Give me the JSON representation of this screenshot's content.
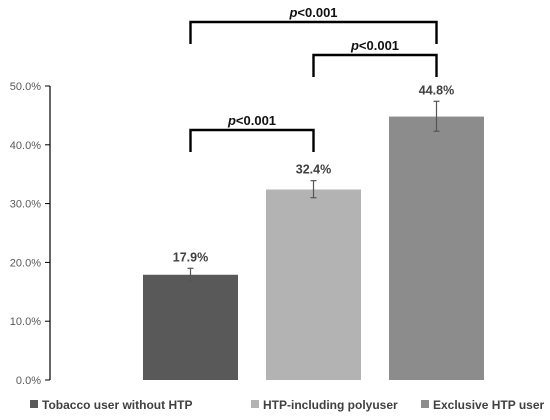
{
  "chart_data": {
    "type": "bar",
    "categories": [
      "Tobacco user without HTP",
      "HTP-including polyuser",
      "Exclusive HTP user"
    ],
    "values": [
      17.9,
      32.4,
      44.8
    ],
    "error_low": [
      16.8,
      31.0,
      42.3
    ],
    "error_high": [
      19.0,
      33.9,
      47.4
    ],
    "data_labels": [
      "17.9%",
      "32.4%",
      "44.8%"
    ],
    "bar_colors": [
      "#595959",
      "#b3b3b3",
      "#8c8c8c"
    ],
    "ylim": [
      0,
      50
    ],
    "yticks": [
      0,
      10,
      20,
      30,
      40,
      50
    ],
    "ytick_labels": [
      "0.0%",
      "10.0%",
      "20.0%",
      "30.0%",
      "40.0%",
      "50.0%"
    ],
    "title": "",
    "xlabel": "",
    "ylabel": "",
    "grid": false,
    "legend_position": "bottom",
    "annotations": [
      {
        "from": 0,
        "to": 1,
        "level": 1,
        "p_prefix": "p",
        "p_suffix": "<0.001"
      },
      {
        "from": 1,
        "to": 2,
        "level": 2,
        "p_prefix": "p",
        "p_suffix": "<0.001"
      },
      {
        "from": 0,
        "to": 2,
        "level": 3,
        "p_prefix": "p",
        "p_suffix": "<0.001"
      }
    ]
  }
}
